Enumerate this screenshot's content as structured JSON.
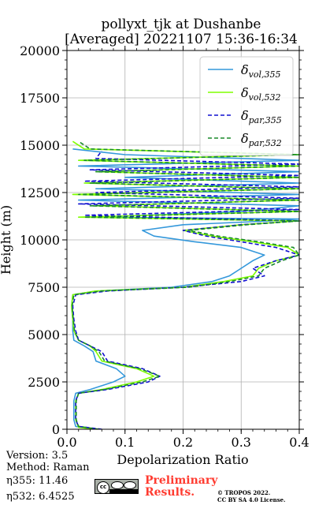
{
  "header": {
    "title_line1": "pollyxt_tjk at Dushanbe",
    "title_line2": "[Averaged] 20221107 15:36-16:34"
  },
  "footer": {
    "version": "Version: 3.5",
    "method": "Method: Raman",
    "eta355": "η355:  11.46",
    "eta532": "η532: 6.4525",
    "preliminary_line1": "Preliminary",
    "preliminary_line2": "Results.",
    "copyright_line1": "© TROPOS 2022.",
    "copyright_line2": "CC BY SA 4.0 License.",
    "license_badge": "cc-by-sa-badge"
  },
  "chart_data": {
    "type": "line",
    "title": "pollyxt_tjk at Dushanbe [Averaged] 20221107 15:36-16:34",
    "xlabel": "Depolarization Ratio",
    "ylabel": "Height (m)",
    "xlim": [
      0,
      0.4
    ],
    "ylim": [
      0,
      20000
    ],
    "xticks": [
      "0.0",
      "0.1",
      "0.2",
      "0.3",
      "0.4"
    ],
    "yticks": [
      "0",
      "2500",
      "5000",
      "7500",
      "10000",
      "12500",
      "15000",
      "17500",
      "20000"
    ],
    "grid": true,
    "legend_position": "upper right",
    "series": [
      {
        "name": "δvol,355",
        "legend_label": "δ",
        "legend_sub": "vol,355",
        "color": "#3498db",
        "style": "solid",
        "points": [
          [
            0.05,
            0
          ],
          [
            0.015,
            150
          ],
          [
            0.012,
            500
          ],
          [
            0.012,
            1500
          ],
          [
            0.015,
            1900
          ],
          [
            0.04,
            2100
          ],
          [
            0.08,
            2500
          ],
          [
            0.1,
            2800
          ],
          [
            0.085,
            3200
          ],
          [
            0.05,
            3600
          ],
          [
            0.045,
            4100
          ],
          [
            0.03,
            4400
          ],
          [
            0.012,
            4700
          ],
          [
            0.01,
            5200
          ],
          [
            0.01,
            5800
          ],
          [
            0.008,
            6500
          ],
          [
            0.01,
            7100
          ],
          [
            0.05,
            7300
          ],
          [
            0.18,
            7500
          ],
          [
            0.25,
            7800
          ],
          [
            0.28,
            8100
          ],
          [
            0.3,
            8500
          ],
          [
            0.32,
            8900
          ],
          [
            0.34,
            9200
          ],
          [
            0.3,
            9600
          ],
          [
            0.22,
            9900
          ],
          [
            0.15,
            10200
          ],
          [
            0.13,
            10500
          ],
          [
            0.2,
            10800
          ],
          [
            0.35,
            11000
          ],
          [
            0.4,
            11100
          ],
          [
            0.05,
            11200
          ],
          [
            0.3,
            11500
          ],
          [
            0.4,
            11800
          ],
          [
            0.02,
            12100
          ],
          [
            0.4,
            12400
          ],
          [
            0.05,
            12700
          ],
          [
            0.4,
            13000
          ],
          [
            0.1,
            13300
          ],
          [
            0.4,
            13600
          ],
          [
            0.02,
            13900
          ],
          [
            0.4,
            14200
          ],
          [
            0.1,
            14500
          ],
          [
            0.01,
            14800
          ]
        ]
      },
      {
        "name": "δvol,532",
        "legend_label": "δ",
        "legend_sub": "vol,532",
        "color": "#7fff00",
        "style": "solid",
        "points": [
          [
            0.05,
            0
          ],
          [
            0.02,
            100
          ],
          [
            0.015,
            500
          ],
          [
            0.015,
            1500
          ],
          [
            0.02,
            1900
          ],
          [
            0.06,
            2100
          ],
          [
            0.12,
            2500
          ],
          [
            0.15,
            2800
          ],
          [
            0.12,
            3200
          ],
          [
            0.06,
            3600
          ],
          [
            0.05,
            4100
          ],
          [
            0.04,
            4400
          ],
          [
            0.02,
            4700
          ],
          [
            0.012,
            5200
          ],
          [
            0.01,
            5800
          ],
          [
            0.008,
            6500
          ],
          [
            0.01,
            7100
          ],
          [
            0.05,
            7300
          ],
          [
            0.2,
            7500
          ],
          [
            0.27,
            7800
          ],
          [
            0.32,
            8100
          ],
          [
            0.33,
            8500
          ],
          [
            0.36,
            8900
          ],
          [
            0.4,
            9200
          ],
          [
            0.38,
            9600
          ],
          [
            0.32,
            9900
          ],
          [
            0.25,
            10200
          ],
          [
            0.2,
            10500
          ],
          [
            0.3,
            10800
          ],
          [
            0.4,
            11000
          ],
          [
            0.02,
            11200
          ],
          [
            0.4,
            11500
          ],
          [
            0.05,
            11800
          ],
          [
            0.4,
            12100
          ],
          [
            0.01,
            12400
          ],
          [
            0.4,
            12700
          ],
          [
            0.03,
            13000
          ],
          [
            0.4,
            13300
          ],
          [
            0.05,
            13600
          ],
          [
            0.4,
            13900
          ],
          [
            0.02,
            14200
          ],
          [
            0.4,
            14500
          ],
          [
            0.03,
            14800
          ],
          [
            0.01,
            15200
          ]
        ]
      },
      {
        "name": "δpar,355",
        "legend_label": "δ",
        "legend_sub": "par,355",
        "color": "#1010d0",
        "style": "dashed",
        "points": [
          [
            0.06,
            0
          ],
          [
            0.02,
            150
          ],
          [
            0.015,
            500
          ],
          [
            0.015,
            1500
          ],
          [
            0.02,
            1900
          ],
          [
            0.07,
            2100
          ],
          [
            0.14,
            2500
          ],
          [
            0.16,
            2800
          ],
          [
            0.13,
            3200
          ],
          [
            0.07,
            3600
          ],
          [
            0.06,
            4100
          ],
          [
            0.04,
            4400
          ],
          [
            0.02,
            4700
          ],
          [
            0.015,
            5200
          ],
          [
            0.012,
            5800
          ],
          [
            0.01,
            6500
          ],
          [
            0.015,
            7100
          ],
          [
            0.07,
            7300
          ],
          [
            0.2,
            7500
          ],
          [
            0.3,
            7800
          ],
          [
            0.34,
            8100
          ],
          [
            0.32,
            8500
          ],
          [
            0.36,
            8900
          ],
          [
            0.4,
            9200
          ],
          [
            0.36,
            9600
          ],
          [
            0.3,
            9900
          ],
          [
            0.24,
            10200
          ],
          [
            0.2,
            10500
          ],
          [
            0.3,
            10800
          ],
          [
            0.4,
            11000
          ],
          [
            0.03,
            11300
          ],
          [
            0.4,
            11600
          ],
          [
            0.02,
            11900
          ],
          [
            0.4,
            12200
          ],
          [
            0.05,
            12500
          ],
          [
            0.4,
            12800
          ],
          [
            0.03,
            13100
          ],
          [
            0.4,
            13400
          ],
          [
            0.04,
            13700
          ],
          [
            0.4,
            14000
          ],
          [
            0.05,
            14300
          ],
          [
            0.06,
            14700
          ]
        ]
      },
      {
        "name": "δpar,532",
        "legend_label": "δ",
        "legend_sub": "par,532",
        "color": "#1a8a2a",
        "style": "dashed",
        "points": [
          [
            0.055,
            0
          ],
          [
            0.02,
            150
          ],
          [
            0.016,
            500
          ],
          [
            0.016,
            1500
          ],
          [
            0.02,
            1900
          ],
          [
            0.065,
            2100
          ],
          [
            0.13,
            2500
          ],
          [
            0.16,
            2800
          ],
          [
            0.125,
            3200
          ],
          [
            0.065,
            3600
          ],
          [
            0.055,
            4100
          ],
          [
            0.04,
            4400
          ],
          [
            0.02,
            4700
          ],
          [
            0.013,
            5200
          ],
          [
            0.011,
            5800
          ],
          [
            0.009,
            6500
          ],
          [
            0.012,
            7100
          ],
          [
            0.06,
            7300
          ],
          [
            0.21,
            7500
          ],
          [
            0.28,
            7800
          ],
          [
            0.33,
            8100
          ],
          [
            0.34,
            8500
          ],
          [
            0.37,
            8900
          ],
          [
            0.4,
            9200
          ],
          [
            0.39,
            9600
          ],
          [
            0.33,
            9900
          ],
          [
            0.26,
            10200
          ],
          [
            0.21,
            10500
          ],
          [
            0.31,
            10800
          ],
          [
            0.4,
            11000
          ],
          [
            0.03,
            11200
          ],
          [
            0.4,
            11500
          ],
          [
            0.04,
            11800
          ],
          [
            0.4,
            12100
          ],
          [
            0.02,
            12400
          ],
          [
            0.4,
            12700
          ],
          [
            0.04,
            13000
          ],
          [
            0.4,
            13300
          ],
          [
            0.05,
            13600
          ],
          [
            0.4,
            13900
          ],
          [
            0.03,
            14200
          ],
          [
            0.4,
            14500
          ],
          [
            0.04,
            14800
          ],
          [
            0.02,
            15200
          ]
        ]
      }
    ]
  }
}
